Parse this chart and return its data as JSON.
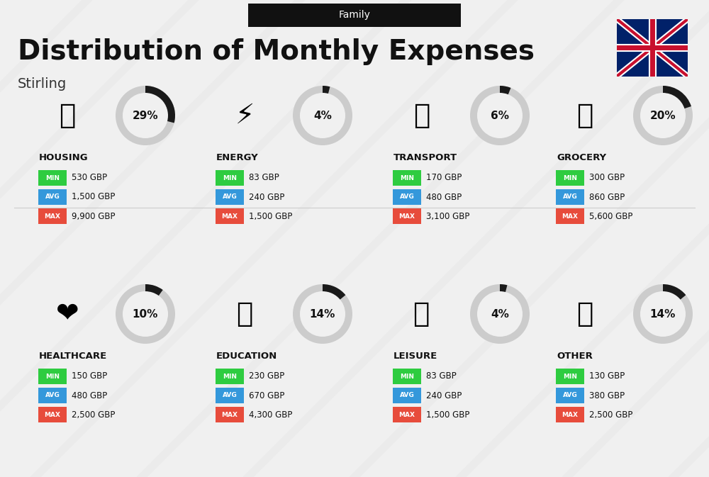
{
  "title": "Distribution of Monthly Expenses",
  "subtitle": "Stirling",
  "family_label": "Family",
  "background_color": "#f0f0f0",
  "categories": [
    {
      "name": "HOUSING",
      "percent": 29,
      "min": "530 GBP",
      "avg": "1,500 GBP",
      "max": "9,900 GBP",
      "col": 0,
      "row": 0
    },
    {
      "name": "ENERGY",
      "percent": 4,
      "min": "83 GBP",
      "avg": "240 GBP",
      "max": "1,500 GBP",
      "col": 1,
      "row": 0
    },
    {
      "name": "TRANSPORT",
      "percent": 6,
      "min": "170 GBP",
      "avg": "480 GBP",
      "max": "3,100 GBP",
      "col": 2,
      "row": 0
    },
    {
      "name": "GROCERY",
      "percent": 20,
      "min": "300 GBP",
      "avg": "860 GBP",
      "max": "5,600 GBP",
      "col": 3,
      "row": 0
    },
    {
      "name": "HEALTHCARE",
      "percent": 10,
      "min": "150 GBP",
      "avg": "480 GBP",
      "max": "2,500 GBP",
      "col": 0,
      "row": 1
    },
    {
      "name": "EDUCATION",
      "percent": 14,
      "min": "230 GBP",
      "avg": "670 GBP",
      "max": "4,300 GBP",
      "col": 1,
      "row": 1
    },
    {
      "name": "LEISURE",
      "percent": 4,
      "min": "83 GBP",
      "avg": "240 GBP",
      "max": "1,500 GBP",
      "col": 2,
      "row": 1
    },
    {
      "name": "OTHER",
      "percent": 14,
      "min": "130 GBP",
      "avg": "380 GBP",
      "max": "2,500 GBP",
      "col": 3,
      "row": 1
    }
  ],
  "min_color": "#2ecc40",
  "avg_color": "#3498db",
  "max_color": "#e74c3c",
  "label_text_color": "#ffffff",
  "value_text_color": "#111111",
  "category_name_color": "#111111",
  "percent_color": "#111111",
  "donut_filled_color": "#1a1a1a",
  "donut_empty_color": "#cccccc",
  "title_color": "#111111",
  "subtitle_color": "#333333"
}
